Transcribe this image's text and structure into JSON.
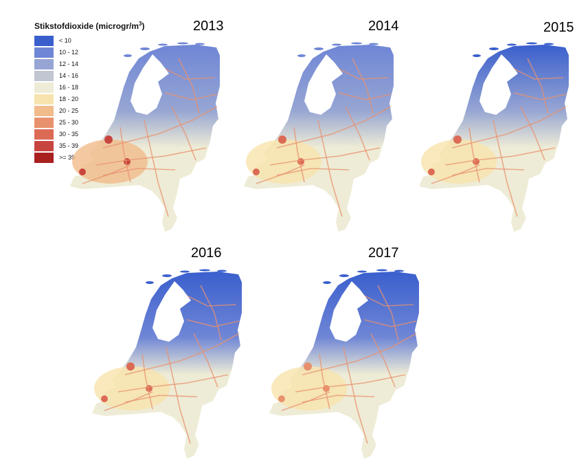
{
  "legend": {
    "title": "Stikstofdioxide (microgr/m",
    "title_sup": "3",
    "title_end": ")",
    "classes": [
      {
        "label": "< 10",
        "color": "#3a5fcd"
      },
      {
        "label": "10 - 12",
        "color": "#6f86d6"
      },
      {
        "label": "12 - 14",
        "color": "#96a5d3"
      },
      {
        "label": "14 - 16",
        "color": "#c2c6d2"
      },
      {
        "label": "16 - 18",
        "color": "#eeecd6"
      },
      {
        "label": "18 - 20",
        "color": "#f7e3ad"
      },
      {
        "label": "20 - 25",
        "color": "#f1bb8b"
      },
      {
        "label": "25 - 30",
        "color": "#e8916d"
      },
      {
        "label": "30 - 35",
        "color": "#dc6b56"
      },
      {
        "label": "35 - 39",
        "color": "#c8453f"
      },
      {
        "label": ">= 39",
        "color": "#a8201f"
      }
    ]
  },
  "maps": [
    {
      "year": "2013",
      "north": "#6f86d6",
      "middle": "#96a5d3",
      "south": "#eeecd6",
      "west": "#f1bb8b",
      "hot": "#c8453f"
    },
    {
      "year": "2014",
      "north": "#6f86d6",
      "middle": "#96a5d3",
      "south": "#eeecd6",
      "west": "#f7e3ad",
      "hot": "#dc6b56"
    },
    {
      "year": "2015",
      "north": "#3a5fcd",
      "middle": "#96a5d3",
      "south": "#eeecd6",
      "west": "#f7e3ad",
      "hot": "#dc6b56"
    },
    {
      "year": "2016",
      "north": "#3a5fcd",
      "middle": "#6f86d6",
      "south": "#eeecd6",
      "west": "#f7e3ad",
      "hot": "#dc6b56"
    },
    {
      "year": "2017",
      "north": "#3a5fcd",
      "middle": "#6f86d6",
      "south": "#eeecd6",
      "west": "#f7e3ad",
      "hot": "#e8916d"
    }
  ]
}
